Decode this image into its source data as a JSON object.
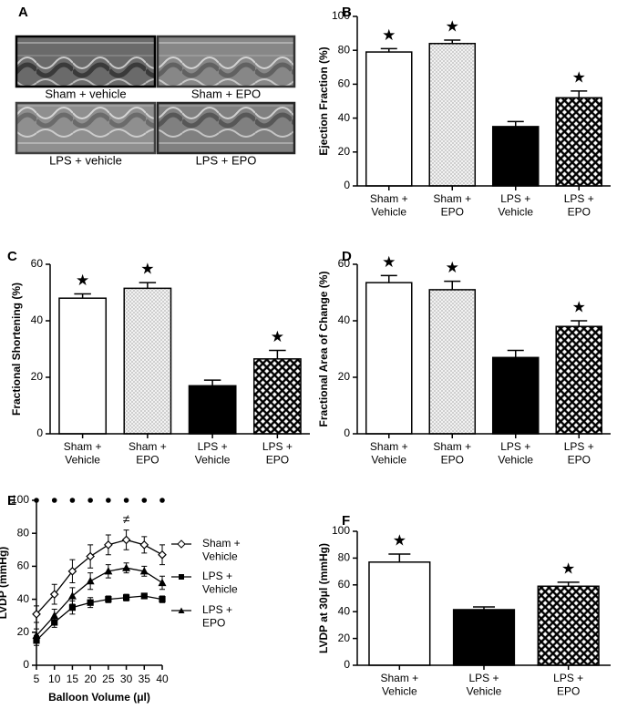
{
  "panel_a": {
    "panel": "A",
    "images": [
      {
        "label": "Sham + vehicle"
      },
      {
        "label": "Sham + EPO"
      },
      {
        "label": "LPS + vehicle"
      },
      {
        "label": "LPS + EPO"
      }
    ]
  },
  "chart_data": [
    {
      "type": "bar",
      "panel": "B",
      "y_label": "Ejection Fraction (%)",
      "categories": [
        "Sham +\nVehicle",
        "Sham +\nEPO",
        "LPS +\nVehicle",
        "LPS +\nEPO"
      ],
      "values": [
        79,
        84,
        35,
        52
      ],
      "errors": [
        2,
        2,
        3,
        4
      ],
      "patterns": [
        "white",
        "dots",
        "black",
        "crosshatch"
      ],
      "annotations": [
        "★",
        "★",
        null,
        "★"
      ],
      "ylim": [
        0,
        100
      ],
      "yticks": [
        0,
        20,
        40,
        60,
        80,
        100
      ]
    },
    {
      "type": "bar",
      "panel": "C",
      "y_label": "Fractional Shortening (%)",
      "categories": [
        "Sham +\nVehicle",
        "Sham +\nEPO",
        "LPS +\nVehicle",
        "LPS +\nEPO"
      ],
      "values": [
        48,
        51.5,
        17,
        26.5
      ],
      "errors": [
        1.5,
        2,
        2,
        3
      ],
      "patterns": [
        "white",
        "dots",
        "black",
        "crosshatch"
      ],
      "annotations": [
        "★",
        "★",
        null,
        "★"
      ],
      "ylim": [
        0,
        60
      ],
      "yticks": [
        0,
        20,
        40,
        60
      ]
    },
    {
      "type": "bar",
      "panel": "D",
      "y_label": "Fractional Area of Change (%)",
      "categories": [
        "Sham +\nVehicle",
        "Sham +\nEPO",
        "LPS +\nVehicle",
        "LPS +\nEPO"
      ],
      "values": [
        53.5,
        51,
        27,
        38
      ],
      "errors": [
        2.5,
        3,
        2.5,
        2
      ],
      "patterns": [
        "white",
        "dots",
        "black",
        "crosshatch"
      ],
      "annotations": [
        "★",
        "★",
        null,
        "★"
      ],
      "ylim": [
        0,
        60
      ],
      "yticks": [
        0,
        20,
        40,
        60
      ]
    },
    {
      "type": "line",
      "panel": "E",
      "y_label": "LVDP (mmHg)",
      "x_label": "Balloon Volume (μl)",
      "x": [
        5,
        10,
        15,
        20,
        25,
        30,
        35,
        40
      ],
      "series": [
        {
          "name": "Sham +\nVehicle",
          "marker": "open-diamond",
          "values": [
            31,
            43,
            57,
            66,
            73,
            76,
            73,
            67
          ],
          "errors": [
            5,
            6,
            7,
            7,
            6,
            6,
            5,
            6
          ]
        },
        {
          "name": "LPS +\nVehicle",
          "marker": "square",
          "values": [
            15,
            26,
            35,
            38,
            40,
            41,
            42,
            40
          ],
          "errors": [
            3,
            3,
            4,
            3,
            2,
            2,
            1,
            2
          ]
        },
        {
          "name": "LPS +\nEPO",
          "marker": "triangle",
          "values": [
            18,
            30,
            42,
            51,
            57,
            59,
            57,
            50
          ],
          "errors": [
            4,
            4,
            5,
            5,
            4,
            3,
            3,
            4
          ]
        }
      ],
      "annotations": [
        {
          "text": "≠",
          "x": 30,
          "y": 88
        }
      ],
      "xlim": [
        5,
        40
      ],
      "xticks": [
        5,
        10,
        15,
        20,
        25,
        30,
        35,
        40
      ],
      "ylim": [
        0,
        100
      ],
      "yticks": [
        0,
        20,
        40,
        60,
        80,
        100
      ]
    },
    {
      "type": "bar",
      "panel": "F",
      "y_label": "LVDP at 30μl (mmHg)",
      "categories": [
        "Sham +\nVehicle",
        "LPS +\nVehicle",
        "LPS +\nEPO"
      ],
      "values": [
        77,
        41.5,
        59
      ],
      "errors": [
        6,
        2,
        3
      ],
      "patterns": [
        "white",
        "black",
        "crosshatch"
      ],
      "annotations": [
        "★",
        null,
        "★"
      ],
      "ylim": [
        0,
        100
      ],
      "yticks": [
        0,
        20,
        40,
        60,
        80,
        100
      ]
    }
  ]
}
